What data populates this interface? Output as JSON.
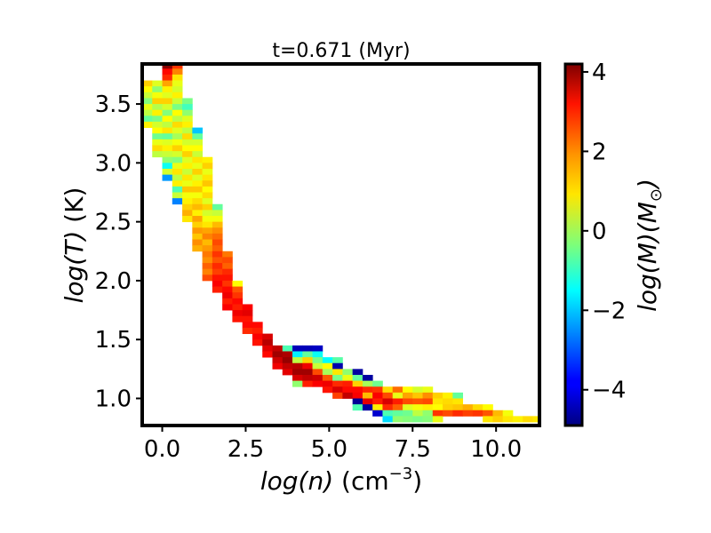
{
  "chart_data": {
    "type": "heatmap",
    "title": "t=0.671 (Myr)",
    "xlabel_italic": "log(n)",
    "xlabel_unit": "(cm",
    "xlabel_exp": "−3",
    "xlabel_close": ")",
    "ylabel_italic": "log(T)",
    "ylabel_unit": "(K)",
    "colorbar_label": "log(M)(M",
    "colorbar_label_sub": "⊙",
    "colorbar_label_close": ")",
    "xlim": [
      -0.6,
      11.3
    ],
    "ylim": [
      0.77,
      3.84
    ],
    "clim": [
      -4.9,
      4.2
    ],
    "colormap": "jet",
    "grid": false,
    "xticks": [
      {
        "v": 0.0,
        "label": "0.0"
      },
      {
        "v": 2.5,
        "label": "2.5"
      },
      {
        "v": 5.0,
        "label": "5.0"
      },
      {
        "v": 7.5,
        "label": "7.5"
      },
      {
        "v": 10.0,
        "label": "10.0"
      }
    ],
    "yticks": [
      {
        "v": 1.0,
        "label": "1.0"
      },
      {
        "v": 1.5,
        "label": "1.5"
      },
      {
        "v": 2.0,
        "label": "2.0"
      },
      {
        "v": 2.5,
        "label": "2.5"
      },
      {
        "v": 3.0,
        "label": "3.0"
      },
      {
        "v": 3.5,
        "label": "3.5"
      }
    ],
    "cticks": [
      {
        "v": 4,
        "label": "4"
      },
      {
        "v": 2,
        "label": "2"
      },
      {
        "v": 0,
        "label": "0"
      },
      {
        "v": -2,
        "label": "−2"
      },
      {
        "v": -4,
        "label": "−4"
      }
    ],
    "bin_width": 0.3,
    "bin_height": 0.05,
    "cells": [
      [
        -0.6,
        3.65,
        1.2
      ],
      [
        -0.6,
        3.6,
        0.8
      ],
      [
        -0.6,
        3.55,
        0.3
      ],
      [
        -0.6,
        3.5,
        -0.3
      ],
      [
        -0.6,
        3.45,
        0.6
      ],
      [
        -0.6,
        3.4,
        0.2
      ],
      [
        -0.6,
        3.35,
        -0.6
      ],
      [
        -0.6,
        3.3,
        0.9
      ],
      [
        -0.3,
        3.65,
        0.5
      ],
      [
        -0.3,
        3.6,
        -0.2
      ],
      [
        -0.3,
        3.55,
        0.7
      ],
      [
        -0.3,
        3.5,
        1.2
      ],
      [
        -0.3,
        3.45,
        0.1
      ],
      [
        -0.3,
        3.4,
        0.9
      ],
      [
        -0.3,
        3.35,
        -0.4
      ],
      [
        -0.3,
        3.3,
        0.4
      ],
      [
        -0.3,
        3.25,
        0.8
      ],
      [
        -0.3,
        3.2,
        -0.5
      ],
      [
        -0.3,
        3.15,
        0.6
      ],
      [
        -0.3,
        3.1,
        1.1
      ],
      [
        -0.3,
        3.05,
        0.2
      ],
      [
        0.0,
        3.8,
        4.1
      ],
      [
        0.0,
        3.75,
        3.0
      ],
      [
        0.0,
        3.7,
        2.7
      ],
      [
        0.0,
        3.65,
        1.6
      ],
      [
        0.0,
        3.6,
        0.9
      ],
      [
        0.0,
        3.55,
        0.5
      ],
      [
        0.0,
        3.5,
        1.2
      ],
      [
        0.0,
        3.45,
        0.4
      ],
      [
        0.0,
        3.4,
        -0.3
      ],
      [
        0.0,
        3.35,
        0.8
      ],
      [
        0.0,
        3.3,
        0.2
      ],
      [
        0.0,
        3.25,
        1.0
      ],
      [
        0.0,
        3.2,
        -0.6
      ],
      [
        0.0,
        3.15,
        0.5
      ],
      [
        0.0,
        3.1,
        0.9
      ],
      [
        0.0,
        3.05,
        0.3
      ],
      [
        0.0,
        3.0,
        -0.2
      ],
      [
        0.0,
        2.95,
        -1.4
      ],
      [
        0.0,
        2.9,
        0.4
      ],
      [
        0.0,
        2.85,
        -2.4
      ],
      [
        0.3,
        3.8,
        2.6
      ],
      [
        0.3,
        3.75,
        1.9
      ],
      [
        0.3,
        3.7,
        1.0
      ],
      [
        0.3,
        3.65,
        0.6
      ],
      [
        0.3,
        3.6,
        0.4
      ],
      [
        0.3,
        3.55,
        0.9
      ],
      [
        0.3,
        3.5,
        0.3
      ],
      [
        0.3,
        3.45,
        -0.4
      ],
      [
        0.3,
        3.4,
        0.8
      ],
      [
        0.3,
        3.35,
        0.2
      ],
      [
        0.3,
        3.3,
        1.1
      ],
      [
        0.3,
        3.25,
        0.5
      ],
      [
        0.3,
        3.2,
        0.0
      ],
      [
        0.3,
        3.15,
        0.7
      ],
      [
        0.3,
        3.1,
        1.2
      ],
      [
        0.3,
        3.05,
        0.4
      ],
      [
        0.3,
        3.0,
        -0.3
      ],
      [
        0.3,
        2.95,
        0.6
      ],
      [
        0.3,
        2.9,
        1.0
      ],
      [
        0.3,
        2.85,
        0.2
      ],
      [
        0.3,
        2.8,
        0.9
      ],
      [
        0.3,
        2.75,
        -0.8
      ],
      [
        0.3,
        2.7,
        0.3
      ],
      [
        0.3,
        2.65,
        -2.6
      ],
      [
        0.6,
        3.5,
        -0.4
      ],
      [
        0.6,
        3.45,
        -0.9
      ],
      [
        0.6,
        3.4,
        -0.2
      ],
      [
        0.6,
        3.35,
        0.5
      ],
      [
        0.6,
        3.3,
        0.9
      ],
      [
        0.6,
        3.25,
        0.2
      ],
      [
        0.6,
        3.2,
        1.1
      ],
      [
        0.6,
        3.15,
        0.4
      ],
      [
        0.6,
        3.1,
        0.8
      ],
      [
        0.6,
        3.05,
        1.2
      ],
      [
        0.6,
        3.0,
        0.5
      ],
      [
        0.6,
        2.95,
        0.9
      ],
      [
        0.6,
        2.9,
        0.3
      ],
      [
        0.6,
        2.85,
        1.0
      ],
      [
        0.6,
        2.8,
        0.6
      ],
      [
        0.6,
        2.75,
        1.3
      ],
      [
        0.6,
        2.7,
        0.7
      ],
      [
        0.6,
        2.65,
        0.9
      ],
      [
        0.6,
        2.6,
        1.2
      ],
      [
        0.6,
        2.55,
        1.5
      ],
      [
        0.6,
        2.5,
        1.0
      ],
      [
        0.9,
        3.25,
        -2.0
      ],
      [
        0.9,
        3.2,
        -0.6
      ],
      [
        0.9,
        3.15,
        0.4
      ],
      [
        0.9,
        3.1,
        0.8
      ],
      [
        0.9,
        3.05,
        0.3
      ],
      [
        0.9,
        3.0,
        1.0
      ],
      [
        0.9,
        2.95,
        0.6
      ],
      [
        0.9,
        2.9,
        1.2
      ],
      [
        0.9,
        2.85,
        0.5
      ],
      [
        0.9,
        2.8,
        0.9
      ],
      [
        0.9,
        2.75,
        1.3
      ],
      [
        0.9,
        2.7,
        0.7
      ],
      [
        0.9,
        2.65,
        1.1
      ],
      [
        0.9,
        2.6,
        1.4
      ],
      [
        0.9,
        2.55,
        0.9
      ],
      [
        0.9,
        2.5,
        1.6
      ],
      [
        0.9,
        2.45,
        1.2
      ],
      [
        0.9,
        2.4,
        1.7
      ],
      [
        0.9,
        2.35,
        1.3
      ],
      [
        0.9,
        2.3,
        1.8
      ],
      [
        0.9,
        2.25,
        1.5
      ],
      [
        1.2,
        3.0,
        0.9
      ],
      [
        1.2,
        2.95,
        1.2
      ],
      [
        1.2,
        2.9,
        0.6
      ],
      [
        1.2,
        2.85,
        1.0
      ],
      [
        1.2,
        2.8,
        1.3
      ],
      [
        1.2,
        2.75,
        0.8
      ],
      [
        1.2,
        2.7,
        1.1
      ],
      [
        1.2,
        2.65,
        0.5
      ],
      [
        1.2,
        2.6,
        1.2
      ],
      [
        1.2,
        2.55,
        0.4
      ],
      [
        1.2,
        2.5,
        0.7
      ],
      [
        1.2,
        2.45,
        1.0
      ],
      [
        1.2,
        2.4,
        1.6
      ],
      [
        1.2,
        2.35,
        1.9
      ],
      [
        1.2,
        2.3,
        1.4
      ],
      [
        1.2,
        2.25,
        1.7
      ],
      [
        1.2,
        2.2,
        2.0
      ],
      [
        1.2,
        2.15,
        1.8
      ],
      [
        1.2,
        2.1,
        2.2
      ],
      [
        1.2,
        2.05,
        1.9
      ],
      [
        1.2,
        2.0,
        2.4
      ],
      [
        1.5,
        2.6,
        -0.6
      ],
      [
        1.5,
        2.55,
        0.3
      ],
      [
        1.5,
        2.5,
        0.7
      ],
      [
        1.5,
        2.45,
        1.4
      ],
      [
        1.5,
        2.4,
        1.8
      ],
      [
        1.5,
        2.35,
        2.1
      ],
      [
        1.5,
        2.3,
        2.4
      ],
      [
        1.5,
        2.25,
        2.2
      ],
      [
        1.5,
        2.2,
        2.6
      ],
      [
        1.5,
        2.15,
        2.3
      ],
      [
        1.5,
        2.1,
        2.7
      ],
      [
        1.5,
        2.05,
        2.5
      ],
      [
        1.5,
        2.0,
        2.9
      ],
      [
        1.5,
        1.95,
        3.1
      ],
      [
        1.5,
        1.9,
        2.8
      ],
      [
        1.8,
        2.2,
        2.0
      ],
      [
        1.8,
        2.15,
        2.4
      ],
      [
        1.8,
        2.1,
        2.2
      ],
      [
        1.8,
        2.05,
        2.7
      ],
      [
        1.8,
        2.0,
        2.9
      ],
      [
        1.8,
        1.95,
        2.6
      ],
      [
        1.8,
        1.9,
        3.0
      ],
      [
        1.8,
        1.85,
        3.2
      ],
      [
        1.8,
        1.8,
        2.8
      ],
      [
        1.8,
        1.75,
        3.1
      ],
      [
        2.1,
        1.95,
        0.8
      ],
      [
        2.1,
        1.9,
        2.3
      ],
      [
        2.1,
        1.85,
        2.6
      ],
      [
        2.1,
        1.8,
        3.0
      ],
      [
        2.1,
        1.75,
        2.8
      ],
      [
        2.1,
        1.7,
        3.2
      ],
      [
        2.1,
        1.65,
        2.9
      ],
      [
        2.4,
        1.75,
        3.1
      ],
      [
        2.4,
        1.7,
        3.3
      ],
      [
        2.4,
        1.65,
        2.9
      ],
      [
        2.4,
        1.6,
        3.0
      ],
      [
        2.4,
        1.55,
        2.7
      ],
      [
        2.7,
        1.6,
        3.0
      ],
      [
        2.7,
        1.55,
        2.8
      ],
      [
        2.7,
        1.5,
        3.1
      ],
      [
        2.7,
        1.45,
        2.9
      ],
      [
        3.0,
        1.5,
        3.4
      ],
      [
        3.0,
        1.45,
        3.7
      ],
      [
        3.0,
        1.4,
        3.3
      ],
      [
        3.0,
        1.35,
        3.0
      ],
      [
        3.3,
        1.4,
        3.6
      ],
      [
        3.3,
        1.35,
        3.9
      ],
      [
        3.3,
        1.3,
        3.5
      ],
      [
        3.3,
        1.25,
        3.2
      ],
      [
        3.6,
        1.4,
        -0.8
      ],
      [
        3.6,
        1.35,
        3.8
      ],
      [
        3.6,
        1.3,
        4.0
      ],
      [
        3.6,
        1.25,
        3.6
      ],
      [
        3.6,
        1.2,
        3.3
      ],
      [
        3.9,
        1.4,
        -4.4
      ],
      [
        3.9,
        1.35,
        -1.6
      ],
      [
        3.9,
        1.3,
        0.2
      ],
      [
        3.9,
        1.25,
        3.7
      ],
      [
        3.9,
        1.2,
        3.9
      ],
      [
        3.9,
        1.15,
        3.4
      ],
      [
        3.9,
        1.1,
        -0.2
      ],
      [
        4.2,
        1.4,
        -4.4
      ],
      [
        4.2,
        1.35,
        -0.6
      ],
      [
        4.2,
        1.3,
        1.2
      ],
      [
        4.2,
        1.25,
        3.2
      ],
      [
        4.2,
        1.2,
        3.9
      ],
      [
        4.2,
        1.15,
        3.6
      ],
      [
        4.2,
        1.1,
        2.8
      ],
      [
        4.5,
        1.4,
        -4.3
      ],
      [
        4.5,
        1.35,
        -1.4
      ],
      [
        4.5,
        1.3,
        -0.4
      ],
      [
        4.5,
        1.25,
        0.3
      ],
      [
        4.5,
        1.2,
        2.4
      ],
      [
        4.5,
        1.15,
        3.5
      ],
      [
        4.5,
        1.1,
        3.1
      ],
      [
        4.8,
        1.3,
        -1.5
      ],
      [
        4.8,
        1.25,
        0.8
      ],
      [
        4.8,
        1.2,
        0.0
      ],
      [
        4.8,
        1.15,
        2.3
      ],
      [
        4.8,
        1.1,
        3.2
      ],
      [
        4.8,
        1.05,
        2.9
      ],
      [
        5.1,
        1.3,
        -0.7
      ],
      [
        5.1,
        1.25,
        -4.5
      ],
      [
        5.1,
        1.2,
        1.0
      ],
      [
        5.1,
        1.15,
        -0.4
      ],
      [
        5.1,
        1.1,
        2.7
      ],
      [
        5.1,
        1.05,
        3.4
      ],
      [
        5.1,
        1.0,
        2.5
      ],
      [
        5.4,
        1.2,
        -0.2
      ],
      [
        5.4,
        1.15,
        0.6
      ],
      [
        5.4,
        1.1,
        2.8
      ],
      [
        5.4,
        1.05,
        3.0
      ],
      [
        5.4,
        1.0,
        3.6
      ],
      [
        5.7,
        1.2,
        -4.6
      ],
      [
        5.7,
        1.15,
        -0.6
      ],
      [
        5.7,
        1.1,
        1.2
      ],
      [
        5.7,
        1.05,
        3.0
      ],
      [
        5.7,
        1.0,
        3.1
      ],
      [
        5.7,
        0.95,
        -4.7
      ],
      [
        5.7,
        0.9,
        -0.8
      ],
      [
        6.0,
        1.15,
        -4.6
      ],
      [
        6.0,
        1.1,
        0.0
      ],
      [
        6.0,
        1.05,
        2.7
      ],
      [
        6.0,
        1.0,
        1.4
      ],
      [
        6.0,
        0.95,
        3.3
      ],
      [
        6.0,
        0.9,
        -4.6
      ],
      [
        6.3,
        1.1,
        -0.5
      ],
      [
        6.3,
        1.05,
        2.6
      ],
      [
        6.3,
        1.0,
        3.1
      ],
      [
        6.3,
        0.95,
        2.8
      ],
      [
        6.3,
        0.9,
        0.9
      ],
      [
        6.3,
        0.85,
        -4.2
      ],
      [
        6.6,
        1.05,
        1.1
      ],
      [
        6.6,
        1.0,
        2.4
      ],
      [
        6.6,
        0.95,
        3.4
      ],
      [
        6.6,
        0.9,
        2.7
      ],
      [
        6.6,
        0.85,
        -0.8
      ],
      [
        6.6,
        0.8,
        -1.8
      ],
      [
        6.9,
        1.05,
        2.1
      ],
      [
        6.9,
        1.0,
        0.6
      ],
      [
        6.9,
        0.95,
        2.8
      ],
      [
        6.9,
        0.9,
        2.2
      ],
      [
        6.9,
        0.85,
        -0.6
      ],
      [
        6.9,
        0.8,
        -0.2
      ],
      [
        7.2,
        1.05,
        0.8
      ],
      [
        7.2,
        1.0,
        1.6
      ],
      [
        7.2,
        0.95,
        2.4
      ],
      [
        7.2,
        0.9,
        0.5
      ],
      [
        7.2,
        0.85,
        -0.5
      ],
      [
        7.2,
        0.8,
        -0.3
      ],
      [
        7.5,
        1.05,
        0.4
      ],
      [
        7.5,
        1.0,
        1.3
      ],
      [
        7.5,
        0.95,
        2.3
      ],
      [
        7.5,
        0.9,
        0.7
      ],
      [
        7.5,
        0.85,
        0.2
      ],
      [
        7.5,
        0.8,
        -0.4
      ],
      [
        7.8,
        1.05,
        0.6
      ],
      [
        7.8,
        1.0,
        1.8
      ],
      [
        7.8,
        0.95,
        2.4
      ],
      [
        7.8,
        0.9,
        0.9
      ],
      [
        7.8,
        0.85,
        -0.2
      ],
      [
        7.8,
        0.8,
        -0.3
      ],
      [
        8.1,
        1.0,
        1.2
      ],
      [
        8.1,
        0.95,
        1.0
      ],
      [
        8.1,
        0.9,
        0.8
      ],
      [
        8.1,
        0.85,
        2.6
      ],
      [
        8.1,
        0.8,
        0.6
      ],
      [
        8.4,
        1.0,
        0.9
      ],
      [
        8.4,
        0.95,
        1.1
      ],
      [
        8.4,
        0.9,
        1.2
      ],
      [
        8.4,
        0.85,
        2.4
      ],
      [
        8.7,
        1.0,
        -0.6
      ],
      [
        8.7,
        0.95,
        1.0
      ],
      [
        8.7,
        0.9,
        1.3
      ],
      [
        8.7,
        0.85,
        2.7
      ],
      [
        9.0,
        0.9,
        1.5
      ],
      [
        9.0,
        0.85,
        2.5
      ],
      [
        9.3,
        0.9,
        1.1
      ],
      [
        9.3,
        0.85,
        2.6
      ],
      [
        9.6,
        0.9,
        0.8
      ],
      [
        9.6,
        0.85,
        2.3
      ],
      [
        9.6,
        0.8,
        1.0
      ],
      [
        9.9,
        0.85,
        1.4
      ],
      [
        9.9,
        0.8,
        1.2
      ],
      [
        10.2,
        0.85,
        0.7
      ],
      [
        10.2,
        0.8,
        1.0
      ],
      [
        10.5,
        0.8,
        0.9
      ],
      [
        10.8,
        0.8,
        1.1
      ],
      [
        11.1,
        0.8,
        1.0
      ]
    ]
  }
}
